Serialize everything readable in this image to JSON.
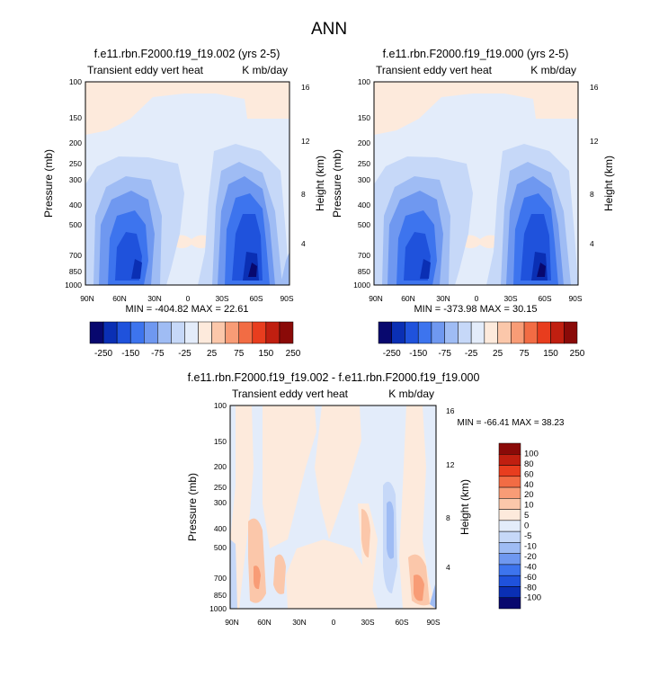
{
  "figure": {
    "title": "ANN"
  },
  "colors": {
    "full_scale": [
      "#08086e",
      "#0a2fb4",
      "#1f52dc",
      "#3d74ee",
      "#6f98f0",
      "#9fbcf4",
      "#c6d8f8",
      "#e3ecfa",
      "#fdeadc",
      "#fbc7aa",
      "#f89c76",
      "#f26c44",
      "#e83d1e",
      "#c01f10",
      "#8a0a08"
    ],
    "diff_scale": [
      "#08086e",
      "#0a2fb4",
      "#1f52dc",
      "#3d74ee",
      "#6f98f0",
      "#9fbcf4",
      "#c6d8f8",
      "#e3ecfa",
      "#fdeadc",
      "#fbc7aa",
      "#f89c76",
      "#f26c44",
      "#e83d1e",
      "#c01f10",
      "#8a0a08"
    ]
  },
  "chart_data": [
    {
      "type": "heatmap",
      "title": "f.e11.rbn.F2000.f19_f19.002 (yrs 2-5)",
      "subtitle_left": "Transient eddy vert heat",
      "subtitle_right": "K mb/day",
      "ylabel": "Pressure (mb)",
      "ylabel_right": "Height (km)",
      "x_ticks": [
        "90N",
        "60N",
        "30N",
        "0",
        "30S",
        "60S",
        "90S"
      ],
      "y_ticks": [
        "100",
        "150",
        "200",
        "250",
        "300",
        "400",
        "500",
        "700",
        "850",
        "1000"
      ],
      "y_ticks_right": [
        "16",
        "12",
        "8",
        "4"
      ],
      "stats": "MIN = -404.82   MAX = 22.61",
      "levels": [
        "-250",
        "-150",
        "-75",
        "-25",
        "25",
        "75",
        "150",
        "250"
      ]
    },
    {
      "type": "heatmap",
      "title": "f.e11.rbn.F2000.f19_f19.000 (yrs 2-5)",
      "subtitle_left": "Transient eddy vert heat",
      "subtitle_right": "K mb/day",
      "ylabel": "Pressure (mb)",
      "ylabel_right": "Height (km)",
      "x_ticks": [
        "90N",
        "60N",
        "30N",
        "0",
        "30S",
        "60S",
        "90S"
      ],
      "y_ticks": [
        "100",
        "150",
        "200",
        "250",
        "300",
        "400",
        "500",
        "700",
        "850",
        "1000"
      ],
      "y_ticks_right": [
        "16",
        "12",
        "8",
        "4"
      ],
      "stats": "MIN = -373.98   MAX = 30.15",
      "levels": [
        "-250",
        "-150",
        "-75",
        "-25",
        "25",
        "75",
        "150",
        "250"
      ]
    },
    {
      "type": "heatmap",
      "title": "f.e11.rbn.F2000.f19_f19.002 - f.e11.rbn.F2000.f19_f19.000",
      "subtitle_left": "Transient eddy vert heat",
      "subtitle_right": "K mb/day",
      "ylabel": "Pressure (mb)",
      "ylabel_right": "Height (km)",
      "x_ticks": [
        "90N",
        "60N",
        "30N",
        "0",
        "30S",
        "60S",
        "90S"
      ],
      "y_ticks": [
        "100",
        "150",
        "200",
        "250",
        "300",
        "400",
        "500",
        "700",
        "850",
        "1000"
      ],
      "y_ticks_right": [
        "16",
        "12",
        "8",
        "4"
      ],
      "stats": "MIN = -66.41   MAX = 38.23",
      "levels": [
        "100",
        "80",
        "60",
        "40",
        "20",
        "10",
        "5",
        "0",
        "-5",
        "-10",
        "-20",
        "-40",
        "-60",
        "-80",
        "-100"
      ]
    }
  ]
}
